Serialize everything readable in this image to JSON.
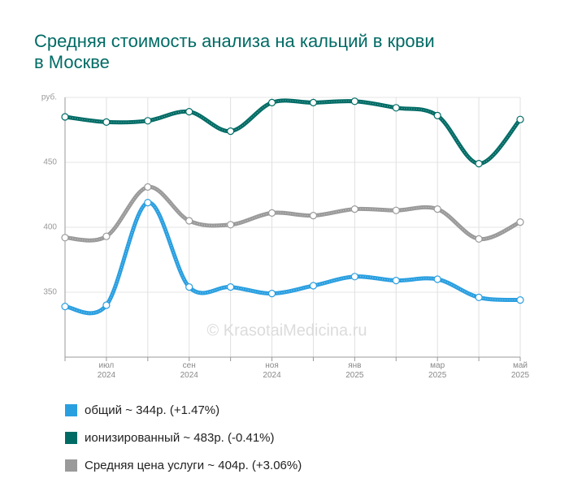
{
  "chart_data": {
    "type": "line",
    "title": "Средняя стоимость анализа на кальций в крови в Москве",
    "watermark": "© KrasotaiMedicina.ru",
    "categories": [
      null,
      "июл 2024",
      null,
      "сен 2024",
      null,
      "ноя 2024",
      null,
      "янв 2025",
      null,
      "мар 2025",
      null,
      "май 2025"
    ],
    "series": [
      {
        "name": "общий ~ 344р. (+1.47%)",
        "color": "#2a9fe0",
        "values": [
          339,
          340,
          419,
          354,
          354,
          349,
          355,
          362,
          359,
          360,
          346,
          344
        ]
      },
      {
        "name": "ионизированный ~ 483р. (-0.41%)",
        "color": "#006b65",
        "values": [
          485,
          481,
          482,
          489,
          474,
          496,
          496,
          497,
          492,
          486,
          449,
          483
        ]
      },
      {
        "name": "Средняя цена услуги ~ 404р. (+3.06%)",
        "color": "#9a9a9a",
        "values": [
          392,
          393,
          431,
          405,
          402,
          411,
          409,
          414,
          413,
          414,
          391,
          404
        ]
      }
    ],
    "ylim": [
      300,
      500
    ],
    "yticks": [
      350,
      400,
      450,
      {
        "value": 500,
        "label": "руб."
      }
    ],
    "grid": true
  }
}
